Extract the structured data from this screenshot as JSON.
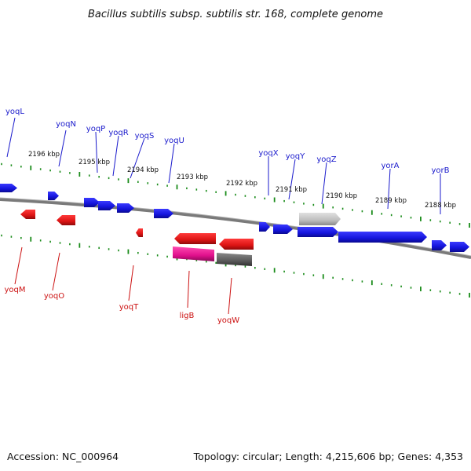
{
  "title": "Bacillus subtilis subsp. subtilis str. 168, complete genome",
  "footer": {
    "accession": "Accession: NC_000964",
    "topology": "Topology: circular; Length: 4,215,606 bp; Genes: 4,353"
  },
  "scale_labels": [
    "2196 kbp",
    "2195 kbp",
    "2194 kbp",
    "2193 kbp",
    "2192 kbp",
    "2191 kbp",
    "2190 kbp",
    "2189 kbp",
    "2188 kbp"
  ],
  "forward_gene_labels": [
    "yoqL",
    "yoqN",
    "yoqP",
    "yoqR",
    "yoqS",
    "yoqU",
    "yoqX",
    "yoqY",
    "yoqZ",
    "yorA",
    "yorB"
  ],
  "reverse_gene_labels": [
    "yoqM",
    "yoqO",
    "yoqT",
    "ligB",
    "yoqW"
  ],
  "colors": {
    "forward": "#1414dc",
    "reverse": "#dc1414",
    "label_forward": "#1a1acc",
    "label_reverse": "#cc1111",
    "tick_major": "#1a8c1a",
    "backbone": "#7a7a7a",
    "pseudo_gray": "#bdbdbd",
    "magenta": "#e0108c",
    "dark_gray": "#5a5a5a"
  }
}
